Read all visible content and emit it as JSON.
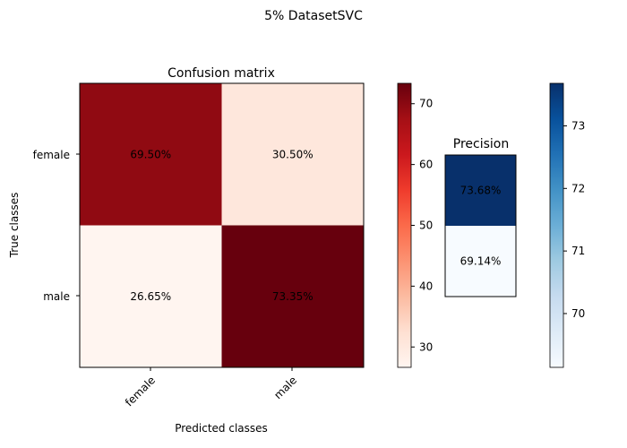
{
  "chart_data": [
    {
      "type": "heatmap",
      "suptitle": "5% DatasetSVC",
      "title": "Confusion matrix",
      "xlabel": "Predicted classes",
      "ylabel": "True classes",
      "x_categories": [
        "female",
        "male"
      ],
      "y_categories": [
        "female",
        "male"
      ],
      "values": [
        [
          69.5,
          30.5
        ],
        [
          26.65,
          73.35
        ]
      ],
      "labels": [
        [
          "69.50%",
          "30.50%"
        ],
        [
          "26.65%",
          "73.35%"
        ]
      ],
      "colormap": "Reds",
      "colorbar": {
        "range": [
          26.65,
          73.35
        ],
        "ticks": [
          30,
          40,
          50,
          60,
          70
        ]
      }
    },
    {
      "type": "heatmap",
      "title": "Precision",
      "values": [
        [
          73.68
        ],
        [
          69.14
        ]
      ],
      "labels": [
        "73.68%",
        "69.14%"
      ],
      "colormap": "Blues",
      "colorbar": {
        "range": [
          69.14,
          73.68
        ],
        "ticks": [
          70,
          71,
          72,
          73
        ]
      }
    }
  ]
}
